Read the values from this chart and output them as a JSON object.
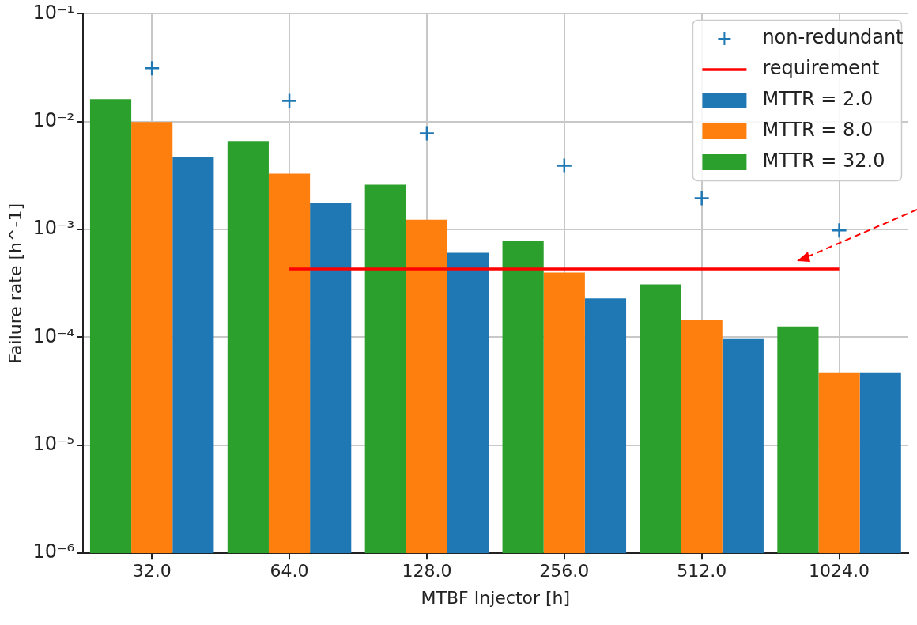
{
  "chart_data": {
    "type": "bar",
    "xlabel": "MTBF Injector [h]",
    "ylabel": "Failure rate [h^-1]",
    "categories": [
      "32.0",
      "64.0",
      "128.0",
      "256.0",
      "512.0",
      "1024.0"
    ],
    "series": [
      {
        "name": "non-redundant",
        "type": "scatter",
        "marker": "cross",
        "color": "#1f77b4",
        "values": [
          0.0313,
          0.0156,
          0.0078,
          0.0039,
          0.00195,
          0.00098
        ]
      },
      {
        "name": "requirement",
        "type": "line",
        "marker": "none",
        "color": "#ff0000",
        "values": [
          null,
          0.00043,
          0.00043,
          0.00043,
          0.00043,
          0.00043
        ]
      },
      {
        "name": "MTTR = 32.0",
        "color": "#2ca02c",
        "values": [
          0.0162,
          0.0066,
          0.0026,
          0.00078,
          0.00031,
          0.000126
        ]
      },
      {
        "name": "MTTR = 8.0",
        "color": "#ff7f0e",
        "values": [
          0.0099,
          0.0033,
          0.00123,
          0.0004,
          0.000144,
          4.74e-05
        ]
      },
      {
        "name": "MTTR = 2.0",
        "color": "#1f77b4",
        "values": [
          0.0047,
          0.00178,
          0.00061,
          0.00023,
          9.8e-05,
          4.74e-05
        ]
      }
    ],
    "log": "y",
    "ylim": [
      1e-06,
      0.1
    ],
    "yticks": [
      {
        "value": 1e-06,
        "label": "10⁻⁶"
      },
      {
        "value": 1e-05,
        "label": "10⁻⁵"
      },
      {
        "value": 0.0001,
        "label": "10⁻⁴"
      },
      {
        "value": 0.001,
        "label": "10⁻³"
      },
      {
        "value": 0.01,
        "label": "10⁻²"
      },
      {
        "value": 0.1,
        "label": "10⁻¹"
      }
    ],
    "grid": true,
    "legend": "top right"
  }
}
